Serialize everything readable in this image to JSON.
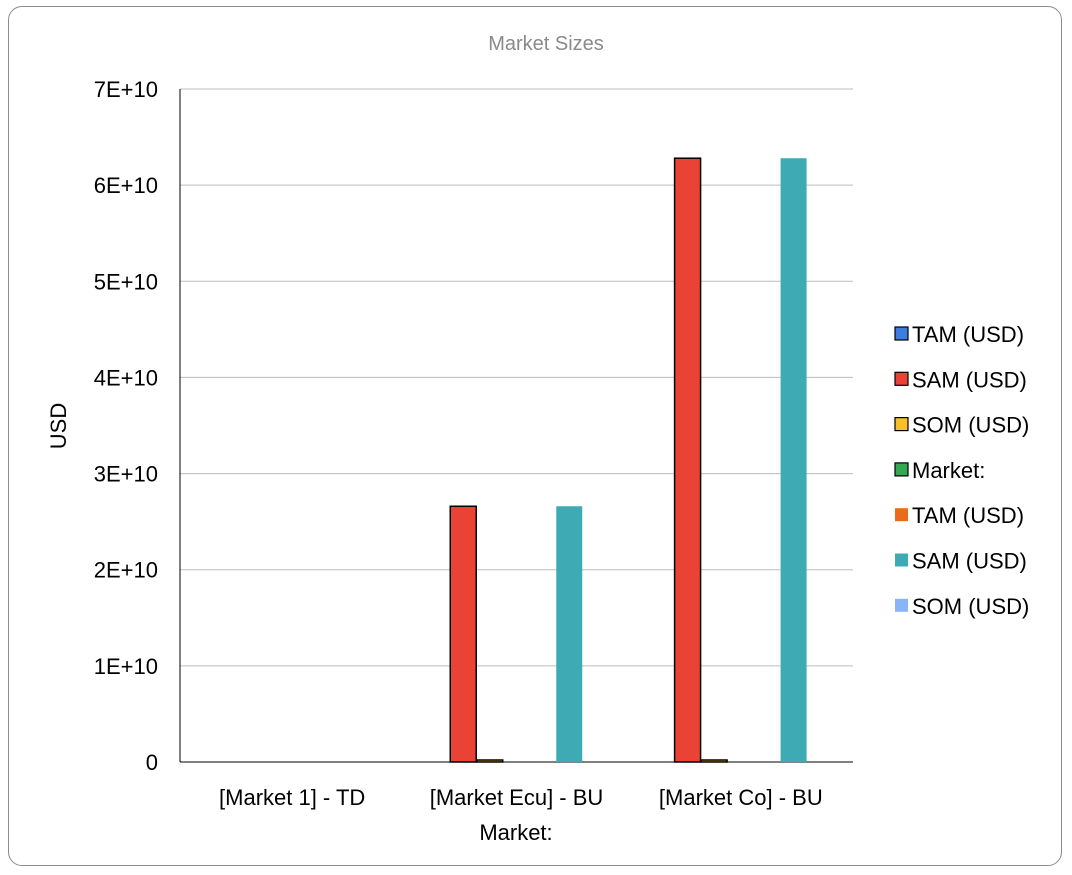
{
  "chart_data": {
    "type": "bar",
    "title": "Market Sizes",
    "xlabel": "Market:",
    "ylabel": "USD",
    "categories": [
      "[Market 1] - TD",
      "[Market Ecu] - BU",
      "[Market Co] - BU"
    ],
    "ylim": [
      0,
      70000000000
    ],
    "yticks": [
      0,
      10000000000,
      20000000000,
      30000000000,
      40000000000,
      50000000000,
      60000000000,
      70000000000
    ],
    "ytick_labels": [
      "0",
      "1E+10",
      "2E+10",
      "3E+10",
      "4E+10",
      "5E+10",
      "6E+10",
      "7E+10"
    ],
    "grid": true,
    "legend_position": "right",
    "series": [
      {
        "name": "TAM (USD)",
        "color": "#3b7de0",
        "outlined": true,
        "values": [
          0,
          0,
          0
        ]
      },
      {
        "name": "SAM (USD)",
        "color": "#ea4335",
        "outlined": true,
        "values": [
          0,
          26600000000,
          62800000000
        ]
      },
      {
        "name": "SOM (USD)",
        "color": "#f5c127",
        "outlined": true,
        "values": [
          0,
          100000000,
          100000000
        ]
      },
      {
        "name": "Market:",
        "color": "#34a853",
        "outlined": true,
        "values": [
          0,
          0,
          0
        ]
      },
      {
        "name": "TAM (USD)",
        "color": "#ea6c1a",
        "outlined": false,
        "values": [
          0,
          0,
          0
        ]
      },
      {
        "name": "SAM (USD)",
        "color": "#3eaab3",
        "outlined": false,
        "values": [
          0,
          26600000000,
          62800000000
        ]
      },
      {
        "name": "SOM (USD)",
        "color": "#8ab4f8",
        "outlined": false,
        "values": [
          0,
          0,
          0
        ]
      }
    ]
  }
}
